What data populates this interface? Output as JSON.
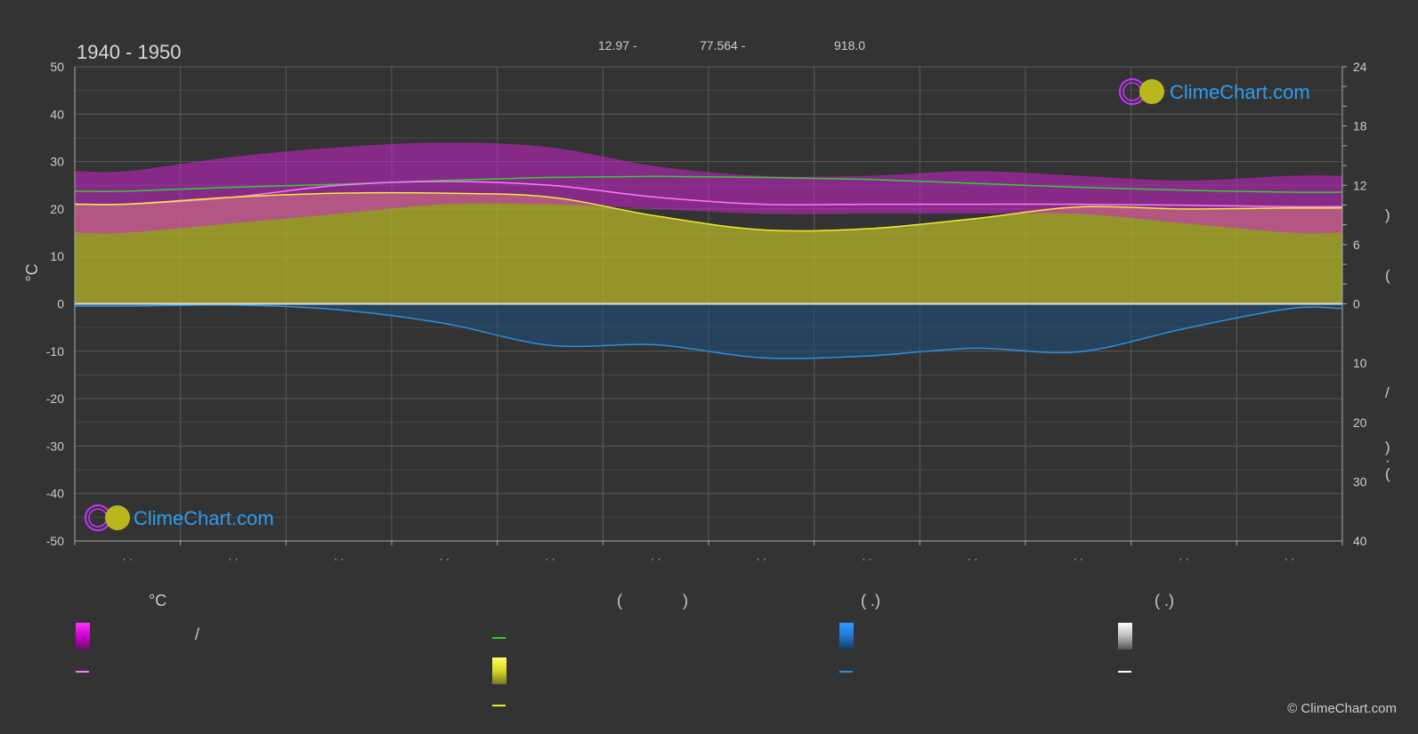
{
  "header": {
    "period": "1940 - 1950",
    "lat_text": "12.97 -",
    "lon_text": "77.564 -",
    "elev_text": "918.0"
  },
  "branding": {
    "logo_text": "ClimeChart.com",
    "copyright": "© ClimeChart.com"
  },
  "axes": {
    "left_label": "°C",
    "left_ticks": [
      "50",
      "40",
      "30",
      "20",
      "10",
      "0",
      "-10",
      "-20",
      "-30",
      "-40",
      "-50"
    ],
    "right_upper_ticks": [
      "24",
      "18",
      "12",
      "6",
      "0"
    ],
    "right_lower_ticks": [
      "10",
      "20",
      "30",
      "40"
    ],
    "month_labels": [
      "· ·",
      "· ·",
      "· ·",
      "· ·",
      "· ·",
      "· ·",
      "· ·",
      "· ·",
      "· ·",
      "· ·",
      "· ·",
      "· ·"
    ],
    "right_marks": [
      ")",
      "(",
      "/",
      ")",
      "·",
      "("
    ]
  },
  "legend": {
    "temp_head": "°C",
    "sun_head_left": "(",
    "sun_head_right": ")",
    "rain_head": "(   .)",
    "snow_head": "(   .)",
    "temp_slash": "/"
  },
  "colors": {
    "background": "#333333",
    "temp_band": "#cc22cc",
    "temp_mean": "#ff77ff",
    "daylight": "#33cc33",
    "sunshine": "#eeee33",
    "sun_band": "#b5b52a",
    "rain": "#2a90e0",
    "snow": "#ffffff"
  },
  "chart_data": {
    "type": "area",
    "x_unit": "month",
    "x": [
      1,
      2,
      3,
      4,
      5,
      6,
      7,
      8,
      9,
      10,
      11,
      12
    ],
    "left_axis": {
      "label": "°C",
      "ylim": [
        -50,
        50
      ]
    },
    "right_axis_upper": {
      "unit": "hours",
      "ylim": [
        0,
        24
      ]
    },
    "right_axis_lower": {
      "unit": "mm",
      "ylim": [
        0,
        40
      ],
      "inverted": true
    },
    "grid": true,
    "series": [
      {
        "key": "temp_max_band",
        "axis": "left",
        "values": [
          28,
          31,
          33,
          34,
          33,
          29,
          27,
          27,
          28,
          27,
          26,
          27
        ]
      },
      {
        "key": "temp_min_band",
        "axis": "left",
        "values": [
          15,
          17,
          19,
          21,
          21,
          20,
          19,
          19,
          19,
          19,
          17,
          15
        ]
      },
      {
        "key": "temp_mean",
        "axis": "left",
        "values": [
          21,
          22.5,
          25,
          25.8,
          25,
          22.5,
          21,
          21,
          21,
          21,
          20.8,
          20.5
        ]
      },
      {
        "key": "daylight_hours",
        "axis": "right_upper",
        "values": [
          11.4,
          11.8,
          12.1,
          12.5,
          12.8,
          12.9,
          12.8,
          12.6,
          12.2,
          11.8,
          11.5,
          11.3
        ]
      },
      {
        "key": "sunshine_hours",
        "axis": "right_upper",
        "values": [
          10.1,
          10.8,
          11.2,
          11.2,
          10.8,
          8.9,
          7.5,
          7.6,
          8.6,
          9.8,
          9.6,
          9.7
        ]
      },
      {
        "key": "precipitation_mm",
        "axis": "right_lower",
        "values": [
          0.4,
          0.2,
          1.0,
          3.3,
          7.0,
          6.9,
          9.1,
          8.8,
          7.5,
          8.1,
          4.2,
          0.8
        ]
      }
    ]
  }
}
